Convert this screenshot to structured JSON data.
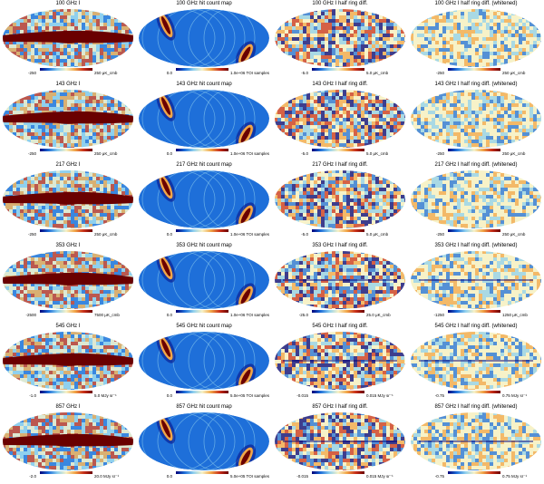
{
  "colors": {
    "dark_blue": "#00007a",
    "mid_blue": "#1e6fd9",
    "light_blue": "#8fd0ee",
    "cream": "#f7f2c8",
    "orange": "#f1a648",
    "red": "#c9301a",
    "dark_red": "#6a0000"
  },
  "rows": [
    {
      "freq": "100 GHz",
      "panels": [
        {
          "kind": "intensity",
          "title": "100 GHz I",
          "min": "-250",
          "max": "250 μK_cmb"
        },
        {
          "kind": "hits",
          "title": "100 GHz hit count map",
          "min": "0.0",
          "max": "1.0e+06 TOI samples"
        },
        {
          "kind": "diff",
          "title": "100 GHz I half ring  diff.",
          "min": "-5.0",
          "max": "5.0 μK_cmb"
        },
        {
          "kind": "white",
          "title": "100 GHz I half ring diff. (whitened)",
          "min": "-250",
          "max": "250 μK_cmb"
        }
      ]
    },
    {
      "freq": "143 GHz",
      "panels": [
        {
          "kind": "intensity",
          "title": "143 GHz I",
          "min": "-250",
          "max": "250 μK_cmb"
        },
        {
          "kind": "hits",
          "title": "143 GHz hit count map",
          "min": "0.0",
          "max": "1.0e+06 TOI samples"
        },
        {
          "kind": "diff",
          "title": "143 GHz I half ring  diff.",
          "min": "-5.0",
          "max": "5.0 μK_cmb"
        },
        {
          "kind": "white",
          "title": "143 GHz I half ring diff. (whitened)",
          "min": "-250",
          "max": "250 μK_cmb"
        }
      ]
    },
    {
      "freq": "217 GHz",
      "panels": [
        {
          "kind": "intensity",
          "title": "217 GHz I",
          "min": "-250",
          "max": "250 μK_cmb"
        },
        {
          "kind": "hits",
          "title": "217 GHz hit count map",
          "min": "0.0",
          "max": "1.0e+06 TOI samples"
        },
        {
          "kind": "diff",
          "title": "217 GHz I half ring  diff.",
          "min": "-5.0",
          "max": "5.0 μK_cmb"
        },
        {
          "kind": "white",
          "title": "217 GHz I half ring diff. (whitened)",
          "min": "-250",
          "max": "250 μK_cmb"
        }
      ]
    },
    {
      "freq": "353 GHz",
      "panels": [
        {
          "kind": "intensity",
          "title": "353 GHz I",
          "min": "-2500",
          "max": "7500 μK_cmb"
        },
        {
          "kind": "hits",
          "title": "353 GHz hit count map",
          "min": "0.0",
          "max": "1.0e+06 TOI samples"
        },
        {
          "kind": "diff",
          "title": "353 GHz I half ring  diff.",
          "min": "-25.0",
          "max": "25.0 μK_cmb"
        },
        {
          "kind": "white",
          "title": "353 GHz I half ring diff. (whitened)",
          "min": "-1250",
          "max": "1250 μK_cmb"
        }
      ]
    },
    {
      "freq": "545 GHz",
      "panels": [
        {
          "kind": "intensity",
          "title": "545 GHz I",
          "min": "-1.0",
          "max": "5.0 MJy sr⁻¹"
        },
        {
          "kind": "hits",
          "title": "545 GHz hit count map",
          "min": "0.0",
          "max": "5.0e+05 TOI samples"
        },
        {
          "kind": "diff",
          "title": "545 GHz I half ring  diff.",
          "min": "-0.015",
          "max": "0.015 MJy sr⁻¹"
        },
        {
          "kind": "white",
          "title": "545 GHz I half ring diff. (whitened)",
          "min": "-0.75",
          "max": "0.75 MJy sr⁻¹"
        }
      ]
    },
    {
      "freq": "857 GHz",
      "panels": [
        {
          "kind": "intensity",
          "title": "857 GHz I",
          "min": "-2.0",
          "max": "20.0 MJy sr⁻¹"
        },
        {
          "kind": "hits",
          "title": "857 GHz hit count map",
          "min": "0.0",
          "max": "5.0e+05 TOI samples"
        },
        {
          "kind": "diff",
          "title": "857 GHz I half ring  diff.",
          "min": "-0.015",
          "max": "0.015 MJy sr⁻¹"
        },
        {
          "kind": "white",
          "title": "857 GHz I half ring diff. (whitened)",
          "min": "-0.75",
          "max": "0.75 MJy sr⁻¹"
        }
      ]
    }
  ]
}
